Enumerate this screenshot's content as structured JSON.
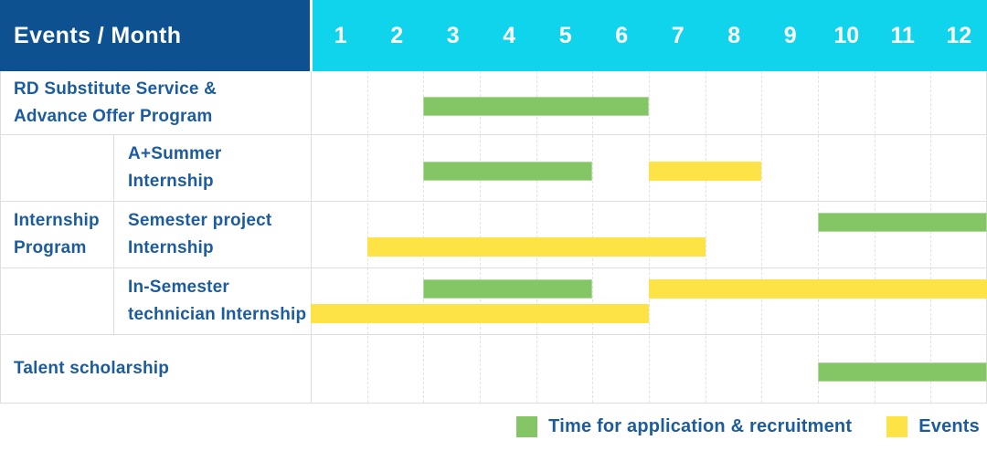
{
  "colors": {
    "header_bg": "#0E5190",
    "month_header_bg": "#10D4EC",
    "header_text": "#FFFFFF",
    "label_text": "#1C5C9E",
    "grid_line": "#DEDEDE",
    "green": "#84C565",
    "yellow": "#FDE345",
    "table_bg": "#FFFFFF"
  },
  "chart_data": {
    "type": "bar",
    "subtype": "gantt-month-timeline",
    "title": "Events / Month",
    "xlabel": "Month",
    "x_ticks": [
      "1",
      "2",
      "3",
      "4",
      "5",
      "6",
      "7",
      "8",
      "9",
      "10",
      "11",
      "12"
    ],
    "x_range_months": [
      1,
      12
    ],
    "grid": "dashed-vertical-per-month",
    "legend_position": "bottom-right",
    "legend": [
      {
        "key": "green",
        "label": "Time for application & recruitment",
        "color": "#84C565"
      },
      {
        "key": "yellow",
        "label": "Events",
        "color": "#FDE345"
      }
    ],
    "group_label": {
      "text": "Internship Program",
      "lines": [
        "Internship",
        "Program"
      ],
      "spans_rows": [
        2,
        4
      ]
    },
    "rows": [
      {
        "label": "RD Substitute Service & Advance Offer Program",
        "label_lines": [
          "RD Substitute Service &",
          "Advance Offer Program"
        ],
        "group": null,
        "bars": [
          {
            "series": "green",
            "start_month": 3,
            "end_month": 6,
            "lane": "center"
          }
        ]
      },
      {
        "label": "A+Summer Internship",
        "label_lines": [
          "A+Summer",
          "Internship"
        ],
        "group": "Internship Program",
        "bars": [
          {
            "series": "green",
            "start_month": 3,
            "end_month": 5,
            "lane": "center"
          },
          {
            "series": "yellow",
            "start_month": 7,
            "end_month": 8,
            "lane": "center"
          }
        ]
      },
      {
        "label": "Semester project Internship",
        "label_lines": [
          "Semester project",
          "Internship"
        ],
        "group": "Internship Program",
        "bars": [
          {
            "series": "green",
            "start_month": 10,
            "end_month": 12,
            "lane": "top"
          },
          {
            "series": "yellow",
            "start_month": 2,
            "end_month": 7,
            "lane": "bottom"
          }
        ]
      },
      {
        "label": "In-Semester technician Internship",
        "label_lines": [
          "In-Semester",
          "technician Internship"
        ],
        "group": "Internship Program",
        "bars": [
          {
            "series": "green",
            "start_month": 3,
            "end_month": 5,
            "lane": "top"
          },
          {
            "series": "yellow",
            "start_month": 7,
            "end_month": 12,
            "lane": "top"
          },
          {
            "series": "yellow",
            "start_month": 1,
            "end_month": 6,
            "lane": "bottom"
          }
        ]
      },
      {
        "label": "Talent scholarship",
        "label_lines": [
          "Talent scholarship"
        ],
        "group": null,
        "bars": [
          {
            "series": "green",
            "start_month": 10,
            "end_month": 12,
            "lane": "center"
          }
        ]
      }
    ]
  }
}
